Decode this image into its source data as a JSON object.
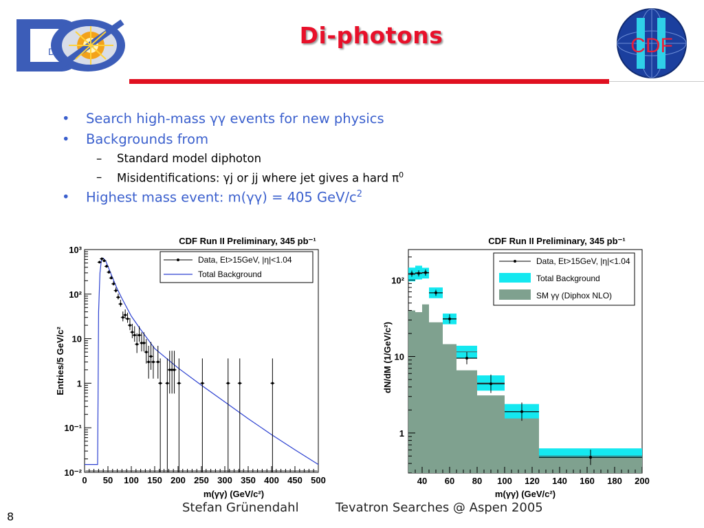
{
  "slide": {
    "title": "Di-photons",
    "page_number": "8",
    "footer_author": "Stefan Grünendahl",
    "footer_event": "Tevatron Searches @ Aspen 2005",
    "logo_left_text": "DØ",
    "logo_right_text": "CDF"
  },
  "bullets": {
    "b1": "Search high-mass γγ events for new physics",
    "b2": "Backgrounds from",
    "b2a": "Standard model diphoton",
    "b2b": "Misidentifications: γj or jj where jet gives a hard π",
    "b2b_sup": "0",
    "b3": "Highest mass event:  m(γγ) = 405 GeV/c",
    "b3_sup": "2"
  },
  "colors": {
    "accent": "#e8102a",
    "bullet_text": "#3a5fcd",
    "bkg_line": "#2a3fd0",
    "cyan": "#14e8f0",
    "sm_fill": "#7fa18f"
  },
  "chart_data": [
    {
      "type": "scatter",
      "title": "CDF Run II Preliminary, 345 pb⁻¹",
      "xlabel": "m(γγ) (GeV/c²)",
      "ylabel": "Entries/5 GeV/c²",
      "xlim": [
        0,
        500
      ],
      "ylim": [
        0.01,
        1000
      ],
      "y_scale": "log",
      "x_ticks": [
        "0",
        "50",
        "100",
        "150",
        "200",
        "250",
        "300",
        "350",
        "400",
        "450",
        "500"
      ],
      "y_ticks": [
        "10⁻²",
        "10⁻¹",
        "1",
        "10",
        "10²",
        "10³"
      ],
      "legend": [
        "Data, Et>15GeV, |η|<1.04",
        "Total Background"
      ],
      "legend_position": "top-right",
      "data": {
        "x": [
          32,
          37,
          42,
          47,
          52,
          57,
          62,
          67,
          72,
          77,
          82,
          87,
          92,
          97,
          102,
          107,
          112,
          117,
          122,
          127,
          132,
          137,
          142,
          147,
          157,
          162,
          177,
          182,
          187,
          192,
          202,
          252,
          307,
          332,
          402
        ],
        "y": [
          520,
          620,
          560,
          420,
          310,
          230,
          170,
          120,
          85,
          60,
          30,
          34,
          28,
          20,
          14,
          12,
          7.5,
          12,
          8,
          8,
          5,
          3,
          4,
          3,
          3,
          1,
          1,
          2,
          2,
          2,
          1,
          1,
          1,
          1,
          1
        ]
      },
      "background": {
        "x": [
          0,
          28,
          30,
          33,
          36,
          40,
          45,
          50,
          60,
          70,
          80,
          100,
          120,
          150,
          200,
          250,
          300,
          350,
          400,
          450,
          500
        ],
        "y": [
          0.015,
          0.015,
          40,
          300,
          590,
          640,
          560,
          420,
          230,
          130,
          80,
          32,
          16,
          6,
          2.2,
          0.9,
          0.38,
          0.16,
          0.07,
          0.032,
          0.015
        ]
      }
    },
    {
      "type": "bar",
      "title": "CDF Run II Preliminary, 345 pb⁻¹",
      "xlabel": "m(γγ) (GeV/c²)",
      "ylabel": "dN/dM (1/GeV/c²)",
      "xlim": [
        30,
        200
      ],
      "ylim": [
        0.3,
        250
      ],
      "y_scale": "log",
      "x_ticks": [
        "40",
        "60",
        "80",
        "100",
        "120",
        "140",
        "160",
        "180",
        "200"
      ],
      "y_ticks": [
        "1",
        "10",
        "10²"
      ],
      "legend": [
        "Data, Et>15GeV, |η|<1.04",
        "Total Background",
        "SM γγ (Diphox NLO)"
      ],
      "legend_position": "top-right",
      "bins": [
        [
          30,
          35
        ],
        [
          35,
          40
        ],
        [
          40,
          45
        ],
        [
          45,
          55
        ],
        [
          55,
          65
        ],
        [
          65,
          80
        ],
        [
          80,
          100
        ],
        [
          100,
          125
        ],
        [
          125,
          200
        ]
      ],
      "total_background": [
        118,
        125,
        123,
        68,
        31,
        11.5,
        4.5,
        1.9,
        0.5
      ],
      "total_background_err": [
        0.09,
        0.09,
        0.07,
        0.07,
        0.07,
        0.08,
        0.1,
        0.1,
        0.1
      ],
      "sm_diphox": [
        40,
        38,
        48,
        28,
        14.5,
        6.6,
        3.1,
        1.55,
        0.48
      ],
      "data": {
        "x": [
          32.5,
          37.5,
          42.5,
          50,
          60,
          72.5,
          90,
          112.5,
          162.5
        ],
        "y": [
          121,
          122,
          125,
          68,
          31,
          9.5,
          4.4,
          1.9,
          0.48
        ],
        "err": [
          0.04,
          0.04,
          0.04,
          0.04,
          0.06,
          0.08,
          0.12,
          0.12,
          0.1
        ]
      }
    }
  ]
}
